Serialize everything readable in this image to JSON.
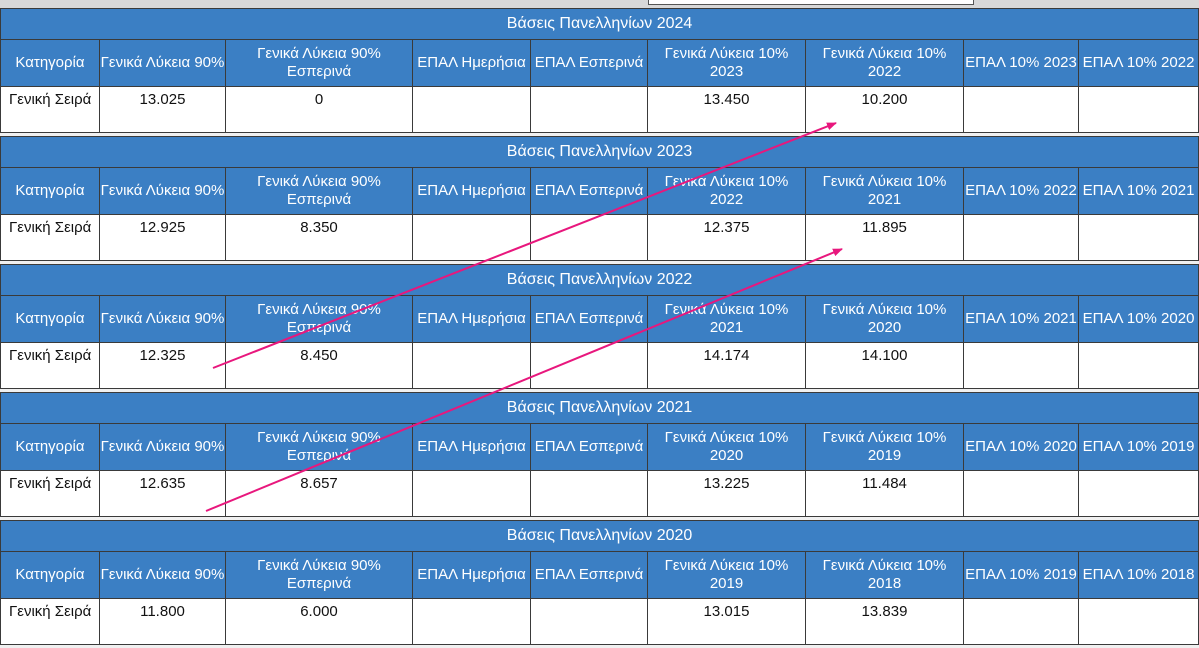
{
  "columns": [
    "Κατηγορία",
    "Γενικά Λύκεια 90%",
    "Γενικά Λύκεια 90% Εσπερινά",
    "ΕΠΑΛ Ημερήσια",
    "ΕΠΑΛ Εσπερινά",
    "Γενικά Λύκεια 10% {y1}",
    "Γενικά Λύκεια 10% {y2}",
    "ΕΠΑΛ 10% {y1}",
    "ΕΠΑΛ 10% {y2}"
  ],
  "sections": [
    {
      "title": "Βάσεις Πανελληνίων 2024",
      "years": [
        "2023",
        "2022"
      ],
      "headers": [
        "Κατηγορία",
        "Γενικά Λύκεια 90%",
        "Γενικά Λύκεια 90% Εσπερινά",
        "ΕΠΑΛ Ημερήσια",
        "ΕΠΑΛ Εσπερινά",
        "Γενικά Λύκεια 10% 2023",
        "Γενικά Λύκεια 10% 2022",
        "ΕΠΑΛ 10% 2023",
        "ΕΠΑΛ 10% 2022"
      ],
      "row": [
        "Γενική Σειρά",
        "13.025",
        "0",
        "",
        "",
        "13.450",
        "10.200",
        "",
        ""
      ]
    },
    {
      "title": "Βάσεις Πανελληνίων 2023",
      "years": [
        "2022",
        "2021"
      ],
      "headers": [
        "Κατηγορία",
        "Γενικά Λύκεια 90%",
        "Γενικά Λύκεια 90% Εσπερινά",
        "ΕΠΑΛ Ημερήσια",
        "ΕΠΑΛ Εσπερινά",
        "Γενικά Λύκεια 10% 2022",
        "Γενικά Λύκεια 10% 2021",
        "ΕΠΑΛ 10% 2022",
        "ΕΠΑΛ 10% 2021"
      ],
      "row": [
        "Γενική Σειρά",
        "12.925",
        "8.350",
        "",
        "",
        "12.375",
        "11.895",
        "",
        ""
      ]
    },
    {
      "title": "Βάσεις Πανελληνίων 2022",
      "years": [
        "2021",
        "2020"
      ],
      "headers": [
        "Κατηγορία",
        "Γενικά Λύκεια 90%",
        "Γενικά Λύκεια 90% Εσπερινά",
        "ΕΠΑΛ Ημερήσια",
        "ΕΠΑΛ Εσπερινά",
        "Γενικά Λύκεια 10% 2021",
        "Γενικά Λύκεια 10% 2020",
        "ΕΠΑΛ 10% 2021",
        "ΕΠΑΛ 10% 2020"
      ],
      "row": [
        "Γενική Σειρά",
        "12.325",
        "8.450",
        "",
        "",
        "14.174",
        "14.100",
        "",
        ""
      ]
    },
    {
      "title": "Βάσεις Πανελληνίων 2021",
      "years": [
        "2020",
        "2019"
      ],
      "headers": [
        "Κατηγορία",
        "Γενικά Λύκεια 90%",
        "Γενικά Λύκεια 90% Εσπερινά",
        "ΕΠΑΛ Ημερήσια",
        "ΕΠΑΛ Εσπερινά",
        "Γενικά Λύκεια 10% 2020",
        "Γενικά Λύκεια 10% 2019",
        "ΕΠΑΛ 10% 2020",
        "ΕΠΑΛ 10% 2019"
      ],
      "row": [
        "Γενική Σειρά",
        "12.635",
        "8.657",
        "",
        "",
        "13.225",
        "11.484",
        "",
        ""
      ]
    },
    {
      "title": "Βάσεις Πανελληνίων 2020",
      "years": [
        "2019",
        "2018"
      ],
      "headers": [
        "Κατηγορία",
        "Γενικά Λύκεια 90%",
        "Γενικά Λύκεια 90% Εσπερινά",
        "ΕΠΑΛ Ημερήσια",
        "ΕΠΑΛ Εσπερινά",
        "Γενικά Λύκεια 10% 2019",
        "Γενικά Λύκεια 10% 2018",
        "ΕΠΑΛ 10% 2019",
        "ΕΠΑΛ 10% 2018"
      ],
      "row": [
        "Γενική Σειρά",
        "11.800",
        "6.000",
        "",
        "",
        "13.015",
        "13.839",
        "",
        ""
      ]
    }
  ],
  "annotation_color": "#e8177d"
}
